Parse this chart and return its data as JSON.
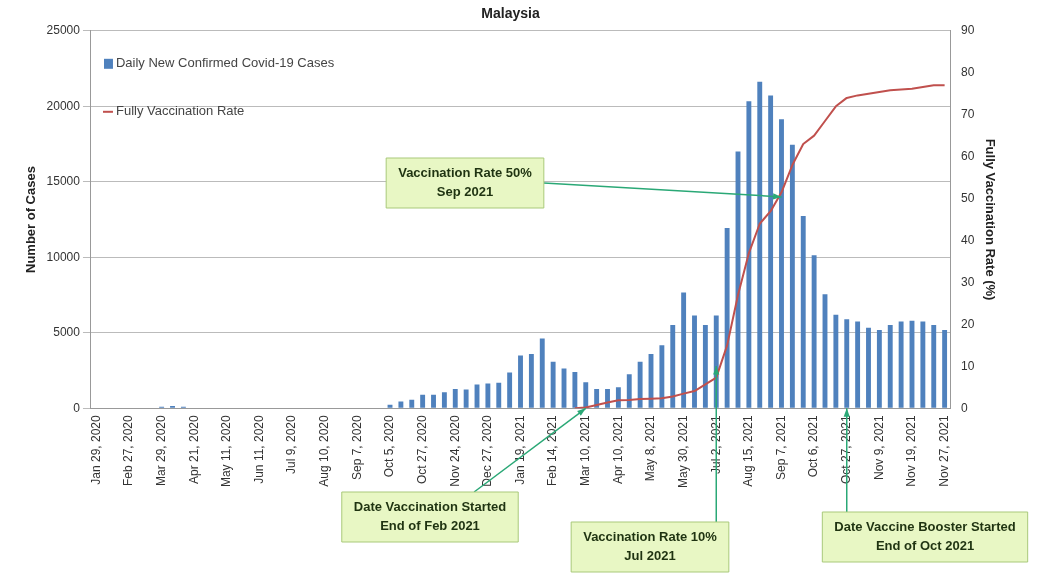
{
  "chart_data": {
    "type": "bar",
    "title": "Malaysia",
    "ylabel": "Number of Cases",
    "y2label": "Fully Vaccination Rate (%)",
    "categories": [
      "Jan 29, 2020",
      null,
      null,
      "Feb 27, 2020",
      null,
      null,
      "Mar 29, 2020",
      null,
      null,
      "Apr 21, 2020",
      null,
      null,
      "May 11, 2020",
      null,
      null,
      "Jun 11, 2020",
      null,
      null,
      "Jul 9, 2020",
      null,
      null,
      "Aug 10, 2020",
      null,
      null,
      "Sep 7, 2020",
      null,
      null,
      "Oct 5, 2020",
      null,
      null,
      "Oct 27, 2020",
      null,
      null,
      "Nov 24, 2020",
      null,
      null,
      "Dec 27, 2020",
      null,
      null,
      "Jan 19, 2021",
      null,
      null,
      "Feb 14, 2021",
      null,
      null,
      "Mar 10, 2021",
      null,
      null,
      "Apr 10, 2021",
      null,
      null,
      "May 8, 2021",
      null,
      null,
      "May 30, 2021",
      null,
      null,
      "Jul 2, 2021",
      null,
      null,
      "Aug 15, 2021",
      null,
      null,
      "Sep 7, 2021",
      null,
      null,
      "Oct 6, 2021",
      null,
      null,
      "Oct 27, 2021",
      null,
      null,
      "Nov 9, 2021",
      null,
      null,
      "Nov 19, 2021",
      null,
      null,
      "Nov 27, 2021"
    ],
    "series": [
      {
        "name": "Daily New Confirmed Covid-19 Cases",
        "color": "#4f81bd",
        "values": [
          0,
          0,
          0,
          0,
          0,
          0,
          100,
          150,
          100,
          0,
          0,
          0,
          0,
          0,
          0,
          0,
          0,
          0,
          0,
          0,
          0,
          0,
          0,
          0,
          0,
          0,
          0,
          230,
          450,
          560,
          900,
          900,
          1060,
          1280,
          1240,
          1580,
          1640,
          1690,
          2370,
          3490,
          3600,
          4620,
          3090,
          2640,
          2410,
          1730,
          1280,
          1280,
          1400,
          2250,
          3090,
          3600,
          4170,
          5520,
          7660,
          6150,
          5520,
          6150,
          11940,
          17000,
          20340,
          21620,
          20720,
          19140,
          17460,
          12730,
          10140,
          7550,
          6190,
          5900,
          5740,
          5340,
          5180,
          5520,
          5740,
          5790,
          5740,
          5520,
          5180
        ]
      },
      {
        "name": "Fully Vaccination Rate",
        "type": "line",
        "axis": "y2",
        "color": "#c0504d",
        "values": [
          null,
          null,
          null,
          null,
          null,
          null,
          null,
          null,
          null,
          null,
          null,
          null,
          null,
          null,
          null,
          null,
          null,
          null,
          null,
          null,
          null,
          null,
          null,
          null,
          null,
          null,
          null,
          null,
          null,
          null,
          null,
          null,
          null,
          null,
          null,
          null,
          null,
          null,
          null,
          null,
          null,
          null,
          null,
          null,
          0,
          0.2,
          0.8,
          1.4,
          1.9,
          2,
          2.2,
          2.3,
          2.4,
          2.8,
          3.5,
          4.1,
          5.7,
          7.3,
          15,
          27,
          37,
          44,
          47,
          51.5,
          58,
          63,
          65,
          68.5,
          72,
          74,
          74.6,
          75,
          75.4,
          75.8,
          76,
          76.2,
          76.6,
          77,
          77
        ]
      }
    ],
    "ylim": [
      0,
      25000
    ],
    "yticks": [
      0,
      5000,
      10000,
      15000,
      20000,
      25000
    ],
    "y2lim": [
      0,
      90
    ],
    "y2ticks": [
      0,
      10,
      20,
      30,
      40,
      50,
      60,
      70,
      80,
      90
    ],
    "grid": "y",
    "legend": "top left",
    "marker": "none",
    "line_style": "solid",
    "annotations": [
      {
        "text": "Vaccination Rate 50%\nSep 2021",
        "x": "Sep 7, 2021",
        "y": 14000
      },
      {
        "text": "Date Vaccination Started\nEnd of Feb 2021",
        "x": "Mar 10, 2021",
        "y": 0
      },
      {
        "text": "Vaccination Rate 10%\nJul 2021",
        "x": "Jul 2, 2021",
        "y": 2800
      },
      {
        "text": "Date Vaccine Booster Started\nEnd of Oct 2021",
        "x": "Oct 27, 2021",
        "y": 0
      }
    ]
  }
}
